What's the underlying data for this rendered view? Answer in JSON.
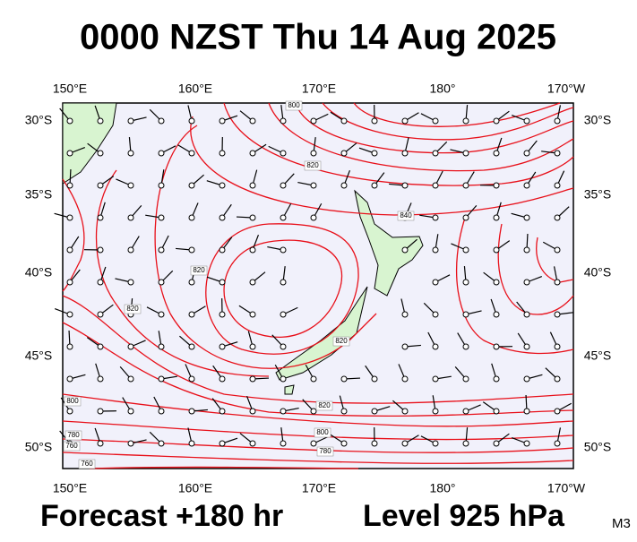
{
  "header": {
    "title": "0000 NZST Thu 14 Aug 2025"
  },
  "map": {
    "lon_labels": [
      "150°E",
      "160°E",
      "170°E",
      "180°",
      "170°W"
    ],
    "lat_labels": [
      "30°S",
      "35°S",
      "40°S",
      "45°S",
      "50°S"
    ],
    "contour_labels": [
      "800",
      "820",
      "840",
      "820",
      "820",
      "820",
      "800",
      "780",
      "760",
      "820",
      "800",
      "780",
      "760"
    ]
  },
  "footer": {
    "forecast": "Forecast +180 hr",
    "level": "Level 925 hPa",
    "model": "M3"
  }
}
